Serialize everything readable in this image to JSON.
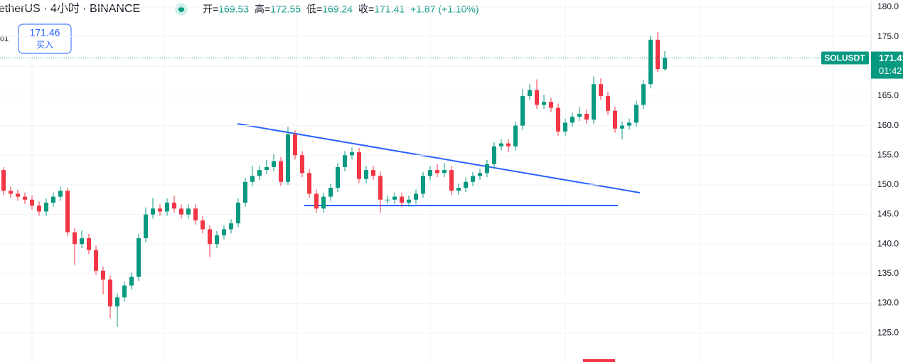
{
  "chart_data": {
    "type": "candlestick",
    "title": "etherUS · 4小时 · BINANCE",
    "symbol": "SOLUSDT",
    "open_label": "开=",
    "high_label": "高=",
    "low_label": "低=",
    "close_label": "收=",
    "change": "+1.87 (+1.10%)",
    "countdown": "01:42",
    "up_color": "#089981",
    "down_color": "#f23645",
    "ylim": [
      120.1,
      181.2
    ],
    "yticks": [
      {
        "value": 125,
        "label": "125.0"
      },
      {
        "value": 130,
        "label": "130.0"
      },
      {
        "value": 135,
        "label": "135.0"
      },
      {
        "value": 140,
        "label": "140.0"
      },
      {
        "value": 145,
        "label": "145.0"
      },
      {
        "value": 150,
        "label": "150.0"
      },
      {
        "value": 155,
        "label": "155.0"
      },
      {
        "value": 160,
        "label": "160.0"
      },
      {
        "value": 165,
        "label": "165.0"
      },
      {
        "value": 170,
        "label": "170.0"
      },
      {
        "value": 175,
        "label": "175.0"
      },
      {
        "value": 180,
        "label": "180.0"
      }
    ],
    "grid": true,
    "open": [
      153.5,
      152.5,
      149,
      148.5,
      148,
      147.5,
      146.5,
      145.5,
      147,
      148,
      149,
      142,
      140,
      141,
      139,
      135.5,
      134,
      129.5,
      131,
      133,
      134.5,
      141,
      145,
      146,
      145.5,
      147,
      146,
      145,
      146,
      144,
      142.5,
      140,
      141.5,
      142.5,
      143.5,
      147,
      150.5,
      151.5,
      152.5,
      153,
      154,
      150.5,
      158.5,
      155,
      152,
      148.5,
      146,
      148,
      149.5,
      153,
      155,
      155.5,
      151,
      152.5,
      151.5,
      147.5,
      147.5,
      148,
      147,
      147.5,
      148.5,
      151.5,
      152.5,
      152,
      152.5,
      149,
      149.5,
      150.5,
      151.5,
      152,
      153.5,
      156.5,
      157,
      156.5,
      160,
      165,
      166,
      163.5,
      164,
      163,
      159,
      160.5,
      161.5,
      162,
      161,
      167,
      165,
      162.5,
      159.5,
      160,
      160.5,
      163.5,
      167,
      174.5,
      169.53
    ],
    "high": [
      154.2,
      153,
      149.7,
      149.2,
      148.7,
      148.2,
      147.2,
      147.7,
      148.7,
      149.7,
      149.5,
      142.7,
      142.3,
      141.7,
      139.7,
      136.2,
      134.7,
      131.7,
      133.7,
      135.2,
      141.7,
      146.2,
      147.8,
      146.7,
      147.7,
      148.2,
      146.7,
      146.7,
      146.7,
      144.7,
      143.2,
      142.2,
      143.2,
      144.2,
      147.7,
      151.2,
      153.2,
      153.2,
      154.2,
      155.2,
      154.7,
      159.8,
      159.2,
      155.7,
      152.7,
      149.2,
      148.7,
      150.2,
      153.7,
      155.7,
      156.3,
      156.2,
      153.2,
      153.2,
      152.2,
      148.2,
      148.7,
      148.7,
      148.2,
      149.2,
      152.2,
      153.2,
      153.5,
      153.7,
      153.2,
      150.2,
      151.2,
      152.2,
      152.7,
      154.2,
      157.2,
      157.7,
      157.7,
      160.7,
      166.2,
      167,
      167.8,
      165.2,
      164.7,
      163.7,
      161.2,
      162.2,
      163.2,
      162.7,
      168.3,
      168,
      165.7,
      163.2,
      160.7,
      161.2,
      164.2,
      167.7,
      175.2,
      175.8,
      172.55
    ],
    "low": [
      151.8,
      148.3,
      147.8,
      147.3,
      146.8,
      145.8,
      144.8,
      144.8,
      146.3,
      147.3,
      141.3,
      136.5,
      139.3,
      138.3,
      134.8,
      131.5,
      127.5,
      126,
      130.3,
      132.3,
      133.8,
      140.3,
      144.3,
      144.8,
      144.8,
      145.3,
      144.3,
      144.3,
      143.3,
      141.8,
      137.8,
      139.3,
      140.8,
      141.8,
      142.8,
      146.3,
      149.8,
      150.8,
      151.8,
      152.3,
      149.8,
      150,
      154.3,
      151.3,
      147.8,
      145.3,
      145.3,
      147.3,
      148.8,
      152.3,
      154.3,
      150.3,
      150.3,
      150.8,
      145.3,
      146.8,
      146.8,
      146.3,
      146.3,
      146.8,
      147.8,
      150.8,
      151.3,
      151.3,
      148.3,
      148.3,
      148.8,
      149.8,
      150.8,
      151.3,
      152.8,
      155.8,
      155.5,
      155.8,
      159.3,
      164.3,
      162.8,
      162.8,
      162.3,
      158.3,
      158.3,
      159.8,
      160.8,
      160.3,
      160.3,
      164.3,
      161.8,
      158.8,
      157.7,
      159.3,
      159.8,
      162.8,
      166.3,
      169,
      169.24
    ],
    "close": [
      152.5,
      149,
      148.5,
      148,
      147.5,
      146.5,
      145.5,
      147,
      148,
      149,
      142,
      140,
      141,
      139,
      135.5,
      134,
      129.5,
      131,
      133,
      134.5,
      141,
      145,
      146,
      145.5,
      147,
      146,
      145,
      146,
      144,
      142.5,
      140,
      141.5,
      142.5,
      143.5,
      147,
      150.5,
      151.5,
      152.5,
      153,
      154,
      150.5,
      158.5,
      155,
      152,
      148.5,
      146,
      148,
      149.5,
      153,
      155,
      155.5,
      151,
      152.5,
      151.5,
      147.5,
      147.5,
      148,
      147,
      147.5,
      148.5,
      151.5,
      152.5,
      152,
      152.5,
      149,
      149.5,
      150.5,
      151.5,
      152,
      153.5,
      156.5,
      157,
      156.5,
      160,
      165,
      166,
      163.5,
      164,
      163,
      159,
      160.5,
      161.5,
      162,
      161,
      167,
      165,
      162.5,
      159.5,
      160,
      160.5,
      163.5,
      167,
      174.5,
      169.53,
      171.41
    ]
  },
  "buy_button": {
    "price": "171.46",
    "label": "买入"
  },
  "left_label": "01"
}
